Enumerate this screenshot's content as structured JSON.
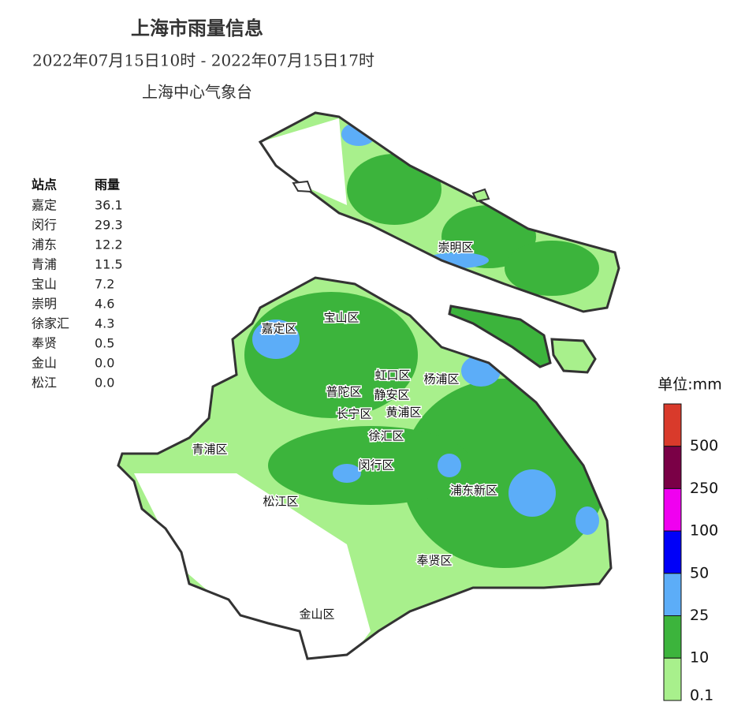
{
  "header": {
    "title": "上海市雨量信息",
    "subtitle": "2022年07月15日10时 - 2022年07月15日17时",
    "issuer": "上海中心气象台"
  },
  "table": {
    "columns": [
      "站点",
      "雨量"
    ],
    "rows": [
      [
        "嘉定",
        "36.1"
      ],
      [
        "闵行",
        "29.3"
      ],
      [
        "浦东",
        "12.2"
      ],
      [
        "青浦",
        "11.5"
      ],
      [
        "宝山",
        "7.2"
      ],
      [
        "崇明",
        "4.6"
      ],
      [
        "徐家汇",
        "4.3"
      ],
      [
        "奉贤",
        "0.5"
      ],
      [
        "金山",
        "0.0"
      ],
      [
        "松江",
        "0.0"
      ]
    ]
  },
  "districts": [
    {
      "label": "崇明区"
    },
    {
      "label": "宝山区"
    },
    {
      "label": "嘉定区"
    },
    {
      "label": "虹口区"
    },
    {
      "label": "杨浦区"
    },
    {
      "label": "普陀区"
    },
    {
      "label": "静安区"
    },
    {
      "label": "长宁区"
    },
    {
      "label": "黄浦区"
    },
    {
      "label": "徐汇区"
    },
    {
      "label": "青浦区"
    },
    {
      "label": "闵行区"
    },
    {
      "label": "松江区"
    },
    {
      "label": "浦东新区"
    },
    {
      "label": "奉贤区"
    },
    {
      "label": "金山区"
    }
  ],
  "legend": {
    "title": "单位:mm",
    "colors": [
      "#d93a2b",
      "#7a0046",
      "#f000f0",
      "#0000f8",
      "#5cadf8",
      "#3cb43c",
      "#a8f08c"
    ],
    "labels": [
      "500",
      "250",
      "100",
      "50",
      "25",
      "10",
      "0.1"
    ]
  }
}
